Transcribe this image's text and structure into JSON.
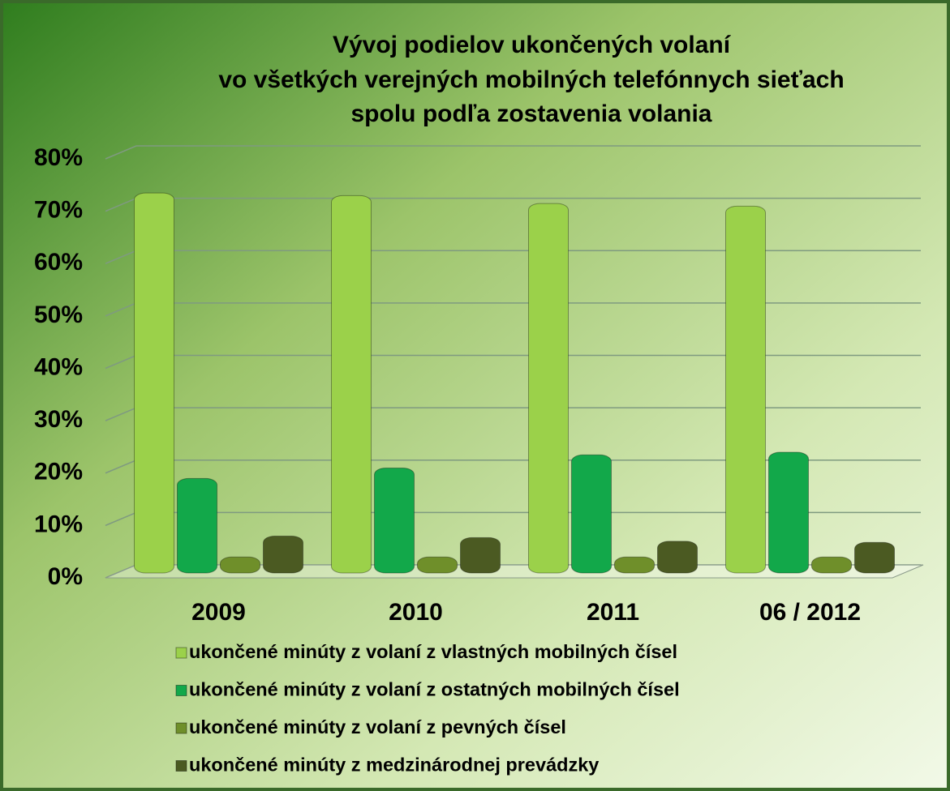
{
  "chart_data": {
    "type": "bar",
    "title": [
      "Vývoj podielov ukončených volaní",
      "vo všetkých verejných mobilných telefónnych sieťach",
      "spolu podľa zostavenia volania"
    ],
    "categories": [
      "2009",
      "2010",
      "2011",
      "06 / 2012"
    ],
    "series": [
      {
        "name": "ukončené minúty z volaní z vlastných mobilných čísel",
        "color": "#9bd14a",
        "values": [
          71,
          70.5,
          69,
          68.5
        ]
      },
      {
        "name": "ukončené minúty z volaní z ostatných mobilných čísel",
        "color": "#12a84a",
        "values": [
          16.5,
          18.5,
          21,
          21.5
        ]
      },
      {
        "name": "ukončené minúty z volaní z pevných čísel",
        "color": "#6f8f2a",
        "values": [
          1.5,
          1.5,
          1.5,
          1.5
        ]
      },
      {
        "name": "ukončené minúty z medzinárodnej prevádzky",
        "color": "#4b5a22",
        "values": [
          5.5,
          5.2,
          4.5,
          4.3
        ]
      }
    ],
    "ylim": [
      0,
      80
    ],
    "yticks": [
      {
        "value": 0,
        "label": "0%"
      },
      {
        "value": 10,
        "label": "10%"
      },
      {
        "value": 20,
        "label": "20%"
      },
      {
        "value": 30,
        "label": "30%"
      },
      {
        "value": 40,
        "label": "40%"
      },
      {
        "value": 50,
        "label": "50%"
      },
      {
        "value": 60,
        "label": "60%"
      },
      {
        "value": 70,
        "label": "70%"
      },
      {
        "value": 80,
        "label": "80%"
      }
    ],
    "grid": true
  }
}
